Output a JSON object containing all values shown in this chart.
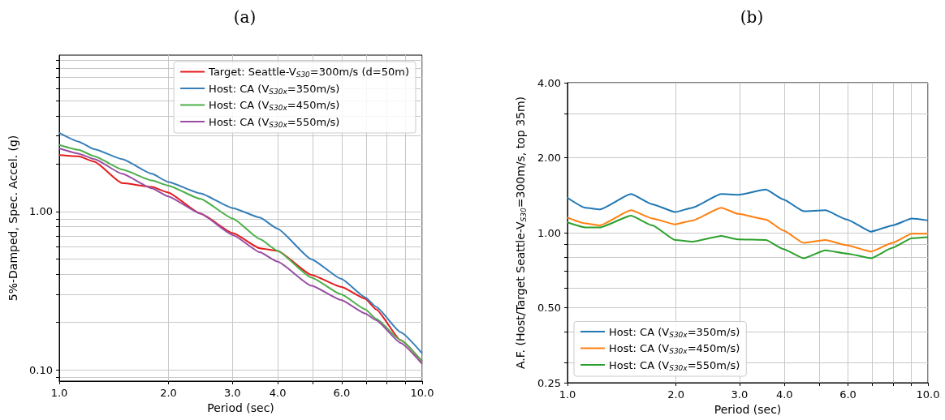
{
  "chart_data": [
    {
      "type": "line",
      "title": "(a)",
      "xlabel": "Period (sec)",
      "ylabel": "5%-Damped, Spec. Accel. (g)",
      "log": "xy",
      "grid": true,
      "legend": "top right",
      "x": [
        1.0,
        1.13,
        1.25,
        1.49,
        1.8,
        1.99,
        2.45,
        3.01,
        3.57,
        3.99,
        4.95,
        5.98,
        6.97,
        7.47,
        8.72,
        10.0
      ],
      "xlim": [
        1,
        10
      ],
      "xticks": [
        {
          "value": 1,
          "label": "1.0"
        },
        {
          "value": 2,
          "label": "2.0"
        },
        {
          "value": 3,
          "label": "3.0"
        },
        {
          "value": 4,
          "label": "4.0"
        },
        {
          "value": 5,
          "label": null
        },
        {
          "value": 6,
          "label": "6.0"
        },
        {
          "value": 7,
          "label": null
        },
        {
          "value": 8,
          "label": null
        },
        {
          "value": 9,
          "label": null
        },
        {
          "value": 10,
          "label": "10.0"
        }
      ],
      "ylim": [
        0.085,
        9.7
      ],
      "yticks": [
        {
          "value": 0.09,
          "label": null
        },
        {
          "value": 0.1,
          "label": "0.10"
        },
        {
          "value": 0.2,
          "label": null
        },
        {
          "value": 0.3,
          "label": null
        },
        {
          "value": 0.4,
          "label": null
        },
        {
          "value": 0.5,
          "label": null
        },
        {
          "value": 0.6,
          "label": null
        },
        {
          "value": 0.7,
          "label": null
        },
        {
          "value": 0.8,
          "label": null
        },
        {
          "value": 0.9,
          "label": null
        },
        {
          "value": 1,
          "label": "1.00"
        },
        {
          "value": 2,
          "label": null
        },
        {
          "value": 3,
          "label": null
        },
        {
          "value": 4,
          "label": null
        },
        {
          "value": 5,
          "label": null
        },
        {
          "value": 6,
          "label": null
        },
        {
          "value": 7,
          "label": null
        },
        {
          "value": 8,
          "label": null
        },
        {
          "value": 9,
          "label": null
        }
      ],
      "series": [
        {
          "name": "Target: Seattle-V$_{S30}$=300m/s (d=50m)",
          "color": "#e41a1c",
          "values": [
            2.27,
            2.23,
            2.06,
            1.51,
            1.43,
            1.32,
            0.97,
            0.73,
            0.586,
            0.565,
            0.398,
            0.334,
            0.281,
            0.241,
            0.154,
            0.113
          ]
        },
        {
          "name": "Host: CA (V$_{S30x}$=350m/s)",
          "color": "#377eb8",
          "values": [
            3.13,
            2.76,
            2.47,
            2.14,
            1.73,
            1.54,
            1.3,
            1.05,
            0.915,
            0.78,
            0.5,
            0.376,
            0.287,
            0.25,
            0.173,
            0.127
          ]
        },
        {
          "name": "Host: CA (V$_{S30x}$=450m/s)",
          "color": "#4daf4a",
          "values": [
            2.63,
            2.45,
            2.23,
            1.84,
            1.57,
            1.46,
            1.2,
            0.9,
            0.67,
            0.565,
            0.383,
            0.3,
            0.241,
            0.21,
            0.154,
            0.113
          ]
        },
        {
          "name": "Host: CA (V$_{S30x}$=550m/s)",
          "color": "#984ea3",
          "values": [
            2.5,
            2.32,
            2.14,
            1.73,
            1.4,
            1.25,
            0.97,
            0.71,
            0.553,
            0.483,
            0.34,
            0.276,
            0.227,
            0.206,
            0.148,
            0.109
          ]
        }
      ]
    },
    {
      "type": "line",
      "title": "(b)",
      "xlabel": "Period (sec)",
      "ylabel": "A.F. (Host/Target Seattle-V$_{S30}$=300m/s, top 35m)",
      "log": "xy",
      "grid": true,
      "legend": "bottom left",
      "x": [
        1.0,
        1.12,
        1.23,
        1.5,
        1.72,
        1.99,
        2.22,
        2.67,
        2.98,
        3.55,
        3.97,
        4.52,
        5.19,
        5.96,
        6.95,
        7.98,
        9.02,
        10.0
      ],
      "xlim": [
        1,
        10
      ],
      "xticks": [
        {
          "value": 1,
          "label": "1.0"
        },
        {
          "value": 2,
          "label": "2.0"
        },
        {
          "value": 3,
          "label": "3.0"
        },
        {
          "value": 4,
          "label": "4.0"
        },
        {
          "value": 5,
          "label": null
        },
        {
          "value": 6,
          "label": "6.0"
        },
        {
          "value": 7,
          "label": null
        },
        {
          "value": 8,
          "label": null
        },
        {
          "value": 9,
          "label": null
        },
        {
          "value": 10,
          "label": "10.0"
        }
      ],
      "ylim": [
        0.25,
        4
      ],
      "yticks": [
        {
          "value": 0.25,
          "label": "0.25"
        },
        {
          "value": 0.3,
          "label": null
        },
        {
          "value": 0.4,
          "label": null
        },
        {
          "value": 0.5,
          "label": "0.50"
        },
        {
          "value": 0.6,
          "label": null
        },
        {
          "value": 0.7,
          "label": null
        },
        {
          "value": 0.8,
          "label": null
        },
        {
          "value": 0.9,
          "label": null
        },
        {
          "value": 1,
          "label": "1.00"
        },
        {
          "value": 2,
          "label": "2.00"
        },
        {
          "value": 3,
          "label": null
        },
        {
          "value": 4,
          "label": "4.00"
        }
      ],
      "series": [
        {
          "name": "Host: CA (V$_{S30x}$=350m/s)",
          "color": "#1f77b4",
          "values": [
            1.38,
            1.26,
            1.24,
            1.43,
            1.3,
            1.21,
            1.26,
            1.43,
            1.42,
            1.49,
            1.36,
            1.22,
            1.23,
            1.13,
            1.01,
            1.07,
            1.14,
            1.12
          ]
        },
        {
          "name": "Host: CA (V$_{S30x}$=450m/s)",
          "color": "#ff7f0e",
          "values": [
            1.15,
            1.09,
            1.07,
            1.23,
            1.14,
            1.08,
            1.12,
            1.26,
            1.19,
            1.13,
            1.02,
            0.91,
            0.935,
            0.89,
            0.84,
            0.91,
            0.99,
            0.99
          ]
        },
        {
          "name": "Host: CA (V$_{S30x}$=550m/s)",
          "color": "#2ca02c",
          "values": [
            1.1,
            1.05,
            1.05,
            1.17,
            1.07,
            0.935,
            0.92,
            0.97,
            0.94,
            0.935,
            0.86,
            0.79,
            0.85,
            0.825,
            0.79,
            0.87,
            0.95,
            0.96
          ]
        }
      ]
    }
  ]
}
